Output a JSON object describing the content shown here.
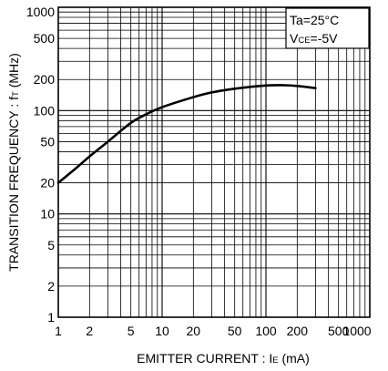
{
  "chart_data": {
    "type": "line",
    "title": "",
    "xscale": "log",
    "yscale": "log",
    "xlim": [
      1,
      1000
    ],
    "ylim": [
      1,
      1000
    ],
    "grid": true,
    "xlabel": {
      "main": "EMITTER  CURRENT : I",
      "sub": "E",
      "unit": " (mA)"
    },
    "ylabel": {
      "main": "TRANSITION  FREQUENCY : f",
      "sub": "T",
      "unit": " (MHz)"
    },
    "x_tick_labels": [
      {
        "value": 1,
        "label": "1"
      },
      {
        "value": 2,
        "label": "2"
      },
      {
        "value": 5,
        "label": "5"
      },
      {
        "value": 10,
        "label": "10"
      },
      {
        "value": 20,
        "label": "20"
      },
      {
        "value": 50,
        "label": "50"
      },
      {
        "value": 100,
        "label": "100"
      },
      {
        "value": 200,
        "label": "200"
      },
      {
        "value": 500,
        "label": "500"
      },
      {
        "value": 1000,
        "label": "1000"
      }
    ],
    "y_tick_labels": [
      {
        "value": 1,
        "label": "1"
      },
      {
        "value": 2,
        "label": "2"
      },
      {
        "value": 5,
        "label": "5"
      },
      {
        "value": 10,
        "label": "10"
      },
      {
        "value": 20,
        "label": "20"
      },
      {
        "value": 50,
        "label": "50"
      },
      {
        "value": 100,
        "label": "100"
      },
      {
        "value": 200,
        "label": "200"
      },
      {
        "value": 500,
        "label": "500"
      },
      {
        "value": 1000,
        "label": "1000"
      }
    ],
    "conditions": [
      {
        "main": "Ta=25°C",
        "sub": "",
        "rest": ""
      },
      {
        "main": "V",
        "sub": "CE",
        "rest": "=-5V"
      }
    ],
    "legend_position": "top-right",
    "series": [
      {
        "points": [
          {
            "x": 1,
            "y": 20
          },
          {
            "x": 1.5,
            "y": 28
          },
          {
            "x": 2,
            "y": 36
          },
          {
            "x": 3,
            "y": 50
          },
          {
            "x": 5,
            "y": 76
          },
          {
            "x": 7,
            "y": 92
          },
          {
            "x": 10,
            "y": 108
          },
          {
            "x": 20,
            "y": 135
          },
          {
            "x": 30,
            "y": 150
          },
          {
            "x": 50,
            "y": 163
          },
          {
            "x": 100,
            "y": 175
          },
          {
            "x": 150,
            "y": 176
          },
          {
            "x": 200,
            "y": 173
          },
          {
            "x": 300,
            "y": 165
          }
        ],
        "color": "#000000"
      }
    ]
  }
}
